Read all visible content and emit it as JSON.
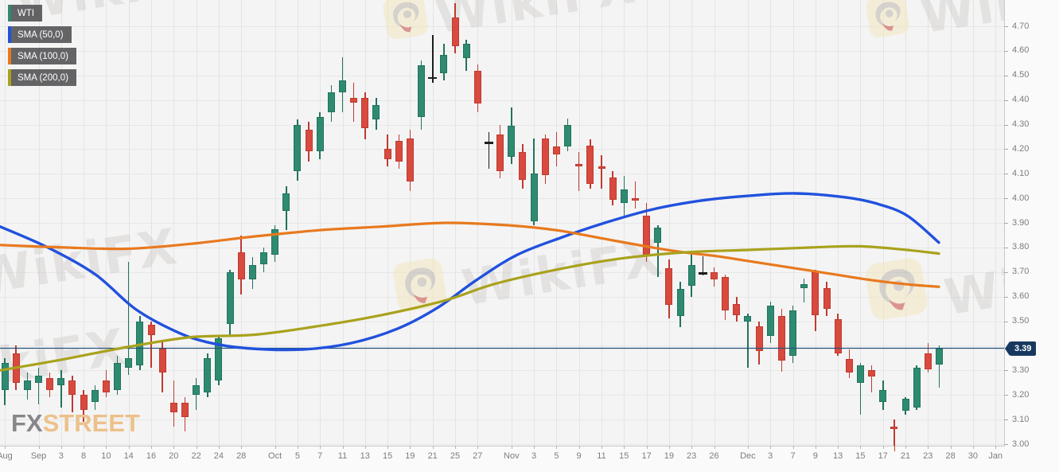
{
  "app": {
    "watermark_text": "WikiFX",
    "brand_fx": "FX",
    "brand_street": "STREET"
  },
  "legend": {
    "items": [
      {
        "label": "WTI",
        "color": "#2e8b72"
      },
      {
        "label": "SMA (50,0)",
        "color": "#2151dd"
      },
      {
        "label": "SMA (100,0)",
        "color": "#e8791e"
      },
      {
        "label": "SMA (200,0)",
        "color": "#a9a21d"
      }
    ]
  },
  "price_axis": {
    "labels": [
      "4.70",
      "4.60",
      "4.50",
      "4.40",
      "4.30",
      "4.20",
      "4.10",
      "4.00",
      "3.90",
      "3.80",
      "3.70",
      "3.60",
      "3.50",
      "3.30",
      "3.20",
      "3.10",
      "3.00"
    ],
    "last_price": "3.39",
    "badge_color": "#17395f",
    "text_color": "#7d7d7d"
  },
  "time_axis": {
    "ticks": [
      {
        "label": "Aug",
        "slot": 0
      },
      {
        "label": "Sep",
        "slot": 3
      },
      {
        "label": "3",
        "slot": 5
      },
      {
        "label": "8",
        "slot": 7
      },
      {
        "label": "10",
        "slot": 9
      },
      {
        "label": "14",
        "slot": 11
      },
      {
        "label": "16",
        "slot": 13
      },
      {
        "label": "20",
        "slot": 15
      },
      {
        "label": "22",
        "slot": 17
      },
      {
        "label": "24",
        "slot": 19
      },
      {
        "label": "28",
        "slot": 21
      },
      {
        "label": "Oct",
        "slot": 24
      },
      {
        "label": "5",
        "slot": 26
      },
      {
        "label": "7",
        "slot": 28
      },
      {
        "label": "11",
        "slot": 30
      },
      {
        "label": "13",
        "slot": 32
      },
      {
        "label": "15",
        "slot": 34
      },
      {
        "label": "19",
        "slot": 36
      },
      {
        "label": "21",
        "slot": 38
      },
      {
        "label": "25",
        "slot": 40
      },
      {
        "label": "27",
        "slot": 42
      },
      {
        "label": "Nov",
        "slot": 45
      },
      {
        "label": "3",
        "slot": 47
      },
      {
        "label": "5",
        "slot": 49
      },
      {
        "label": "9",
        "slot": 51
      },
      {
        "label": "11",
        "slot": 53
      },
      {
        "label": "15",
        "slot": 55
      },
      {
        "label": "17",
        "slot": 57
      },
      {
        "label": "19",
        "slot": 59
      },
      {
        "label": "23",
        "slot": 61
      },
      {
        "label": "26",
        "slot": 63
      },
      {
        "label": "Dec",
        "slot": 66
      },
      {
        "label": "3",
        "slot": 68
      },
      {
        "label": "7",
        "slot": 70
      },
      {
        "label": "9",
        "slot": 72
      },
      {
        "label": "13",
        "slot": 74
      },
      {
        "label": "15",
        "slot": 76
      },
      {
        "label": "17",
        "slot": 78
      },
      {
        "label": "21",
        "slot": 80
      },
      {
        "label": "23",
        "slot": 82
      },
      {
        "label": "28",
        "slot": 84
      },
      {
        "label": "30",
        "slot": 86
      },
      {
        "label": "Jan",
        "slot": 88
      }
    ]
  },
  "chart_data": {
    "type": "candlestick",
    "symbol": "WTI",
    "ylim": [
      2.95,
      4.82
    ],
    "ytick_step": 0.1,
    "grid": true,
    "colors": {
      "up": "#2e8b72",
      "up_border": "#22735c",
      "down": "#d8493e",
      "down_border": "#c03a30",
      "marker": "#1c1c1c"
    },
    "candles_ohlc": [
      [
        3.22,
        3.35,
        3.16,
        3.33
      ],
      [
        3.37,
        3.4,
        3.22,
        3.25
      ],
      [
        3.22,
        3.29,
        3.18,
        3.26
      ],
      [
        3.25,
        3.31,
        3.16,
        3.28
      ],
      [
        3.27,
        3.29,
        3.19,
        3.22
      ],
      [
        3.24,
        3.3,
        3.15,
        3.27
      ],
      [
        3.26,
        3.28,
        3.13,
        3.2
      ],
      [
        3.2,
        3.22,
        3.09,
        3.14
      ],
      [
        3.17,
        3.24,
        3.14,
        3.22
      ],
      [
        3.26,
        3.3,
        3.19,
        3.21
      ],
      [
        3.22,
        3.36,
        3.2,
        3.33
      ],
      [
        3.31,
        3.74,
        3.28,
        3.35
      ],
      [
        3.32,
        3.52,
        3.3,
        3.5
      ],
      [
        3.485,
        3.5,
        3.31,
        3.445
      ],
      [
        3.39,
        3.42,
        3.21,
        3.29
      ],
      [
        3.17,
        3.26,
        3.07,
        3.13
      ],
      [
        3.17,
        3.19,
        3.05,
        3.11
      ],
      [
        3.2,
        3.27,
        3.14,
        3.24
      ],
      [
        3.21,
        3.37,
        3.19,
        3.35
      ],
      [
        3.26,
        3.44,
        3.24,
        3.43
      ],
      [
        3.49,
        3.71,
        3.44,
        3.7
      ],
      [
        3.78,
        3.85,
        3.61,
        3.67
      ],
      [
        3.67,
        3.76,
        3.63,
        3.73
      ],
      [
        3.73,
        3.8,
        3.7,
        3.78
      ],
      [
        3.77,
        3.89,
        3.74,
        3.875
      ],
      [
        3.95,
        4.05,
        3.87,
        4.02
      ],
      [
        4.11,
        4.32,
        4.07,
        4.3
      ],
      [
        4.28,
        4.31,
        4.15,
        4.19
      ],
      [
        4.19,
        4.35,
        4.16,
        4.33
      ],
      [
        4.35,
        4.46,
        4.31,
        4.43
      ],
      [
        4.43,
        4.575,
        4.35,
        4.48
      ],
      [
        4.41,
        4.47,
        4.31,
        4.39
      ],
      [
        4.41,
        4.43,
        4.24,
        4.285
      ],
      [
        4.32,
        4.41,
        4.28,
        4.38
      ],
      [
        4.2,
        4.26,
        4.13,
        4.16
      ],
      [
        4.235,
        4.26,
        4.12,
        4.15
      ],
      [
        4.245,
        4.28,
        4.03,
        4.07
      ],
      [
        4.33,
        4.56,
        4.28,
        4.54
      ],
      [
        4.49,
        4.665,
        4.47,
        4.49
      ],
      [
        4.51,
        4.63,
        4.48,
        4.585
      ],
      [
        4.735,
        4.795,
        4.59,
        4.62
      ],
      [
        4.57,
        4.645,
        4.52,
        4.63
      ],
      [
        4.52,
        4.545,
        4.35,
        4.385
      ],
      [
        4.225,
        4.27,
        4.12,
        4.225
      ],
      [
        4.26,
        4.3,
        4.08,
        4.11
      ],
      [
        4.17,
        4.37,
        4.14,
        4.295
      ],
      [
        4.19,
        4.22,
        4.04,
        4.075
      ],
      [
        3.905,
        4.245,
        3.89,
        4.1
      ],
      [
        4.245,
        4.26,
        4.06,
        4.095
      ],
      [
        4.21,
        4.27,
        4.13,
        4.18
      ],
      [
        4.21,
        4.325,
        4.19,
        4.3
      ],
      [
        4.14,
        4.19,
        4.03,
        4.13
      ],
      [
        4.215,
        4.24,
        4.04,
        4.06
      ],
      [
        4.13,
        4.175,
        4.04,
        4.12
      ],
      [
        4.085,
        4.11,
        3.97,
        3.995
      ],
      [
        3.98,
        4.09,
        3.925,
        4.035
      ],
      [
        4.0,
        4.07,
        3.96,
        3.99
      ],
      [
        3.93,
        3.98,
        3.74,
        3.765
      ],
      [
        3.82,
        3.89,
        3.68,
        3.88
      ],
      [
        3.715,
        3.75,
        3.51,
        3.565
      ],
      [
        3.52,
        3.66,
        3.475,
        3.63
      ],
      [
        3.645,
        3.78,
        3.6,
        3.73
      ],
      [
        3.695,
        3.765,
        3.685,
        3.695
      ],
      [
        3.7,
        3.72,
        3.64,
        3.67
      ],
      [
        3.68,
        3.69,
        3.505,
        3.545
      ],
      [
        3.57,
        3.6,
        3.5,
        3.525
      ],
      [
        3.5,
        3.53,
        3.31,
        3.52
      ],
      [
        3.48,
        3.5,
        3.325,
        3.38
      ],
      [
        3.44,
        3.58,
        3.41,
        3.565
      ],
      [
        3.52,
        3.55,
        3.295,
        3.34
      ],
      [
        3.36,
        3.565,
        3.33,
        3.545
      ],
      [
        3.635,
        3.675,
        3.575,
        3.65
      ],
      [
        3.7,
        3.71,
        3.46,
        3.525
      ],
      [
        3.635,
        3.66,
        3.52,
        3.55
      ],
      [
        3.51,
        3.53,
        3.36,
        3.37
      ],
      [
        3.345,
        3.385,
        3.27,
        3.29
      ],
      [
        3.25,
        3.33,
        3.12,
        3.32
      ],
      [
        3.3,
        3.32,
        3.21,
        3.275
      ],
      [
        3.17,
        3.26,
        3.14,
        3.22
      ],
      [
        3.07,
        3.1,
        2.98,
        3.06
      ],
      [
        3.135,
        3.19,
        3.12,
        3.185
      ],
      [
        3.15,
        3.32,
        3.14,
        3.31
      ],
      [
        3.37,
        3.41,
        3.29,
        3.305
      ],
      [
        3.325,
        3.4,
        3.23,
        3.39
      ]
    ],
    "black_marker_indices": [
      38,
      43,
      62
    ],
    "series": [
      {
        "name": "SMA (50,0)",
        "color": "#2151dd",
        "width": 3.4,
        "points": [
          [
            0,
            3.885
          ],
          [
            60,
            3.8
          ],
          [
            120,
            3.69
          ],
          [
            170,
            3.55
          ],
          [
            220,
            3.46
          ],
          [
            260,
            3.415
          ],
          [
            310,
            3.39
          ],
          [
            380,
            3.385
          ],
          [
            440,
            3.41
          ],
          [
            500,
            3.47
          ],
          [
            550,
            3.555
          ],
          [
            600,
            3.67
          ],
          [
            650,
            3.77
          ],
          [
            705,
            3.84
          ],
          [
            760,
            3.9
          ],
          [
            820,
            3.955
          ],
          [
            880,
            3.99
          ],
          [
            940,
            4.01
          ],
          [
            1000,
            4.02
          ],
          [
            1060,
            4.005
          ],
          [
            1100,
            3.98
          ],
          [
            1140,
            3.93
          ],
          [
            1180,
            3.82
          ]
        ]
      },
      {
        "name": "SMA (100,0)",
        "color": "#e8791e",
        "width": 3.2,
        "points": [
          [
            0,
            3.81
          ],
          [
            80,
            3.8
          ],
          [
            160,
            3.795
          ],
          [
            240,
            3.815
          ],
          [
            320,
            3.845
          ],
          [
            400,
            3.87
          ],
          [
            480,
            3.885
          ],
          [
            560,
            3.9
          ],
          [
            640,
            3.89
          ],
          [
            700,
            3.87
          ],
          [
            760,
            3.835
          ],
          [
            820,
            3.8
          ],
          [
            860,
            3.78
          ],
          [
            900,
            3.765
          ],
          [
            950,
            3.74
          ],
          [
            1000,
            3.715
          ],
          [
            1050,
            3.69
          ],
          [
            1100,
            3.665
          ],
          [
            1140,
            3.65
          ],
          [
            1180,
            3.64
          ]
        ]
      },
      {
        "name": "SMA (200,0)",
        "color": "#a9a21d",
        "width": 3.2,
        "points": [
          [
            0,
            3.3
          ],
          [
            80,
            3.345
          ],
          [
            160,
            3.395
          ],
          [
            240,
            3.435
          ],
          [
            320,
            3.445
          ],
          [
            400,
            3.48
          ],
          [
            480,
            3.525
          ],
          [
            560,
            3.585
          ],
          [
            620,
            3.65
          ],
          [
            700,
            3.71
          ],
          [
            780,
            3.755
          ],
          [
            860,
            3.78
          ],
          [
            940,
            3.79
          ],
          [
            1020,
            3.8
          ],
          [
            1080,
            3.805
          ],
          [
            1140,
            3.79
          ],
          [
            1180,
            3.775
          ]
        ]
      }
    ],
    "price_line": {
      "value": 3.39,
      "color": "#24527d"
    }
  }
}
